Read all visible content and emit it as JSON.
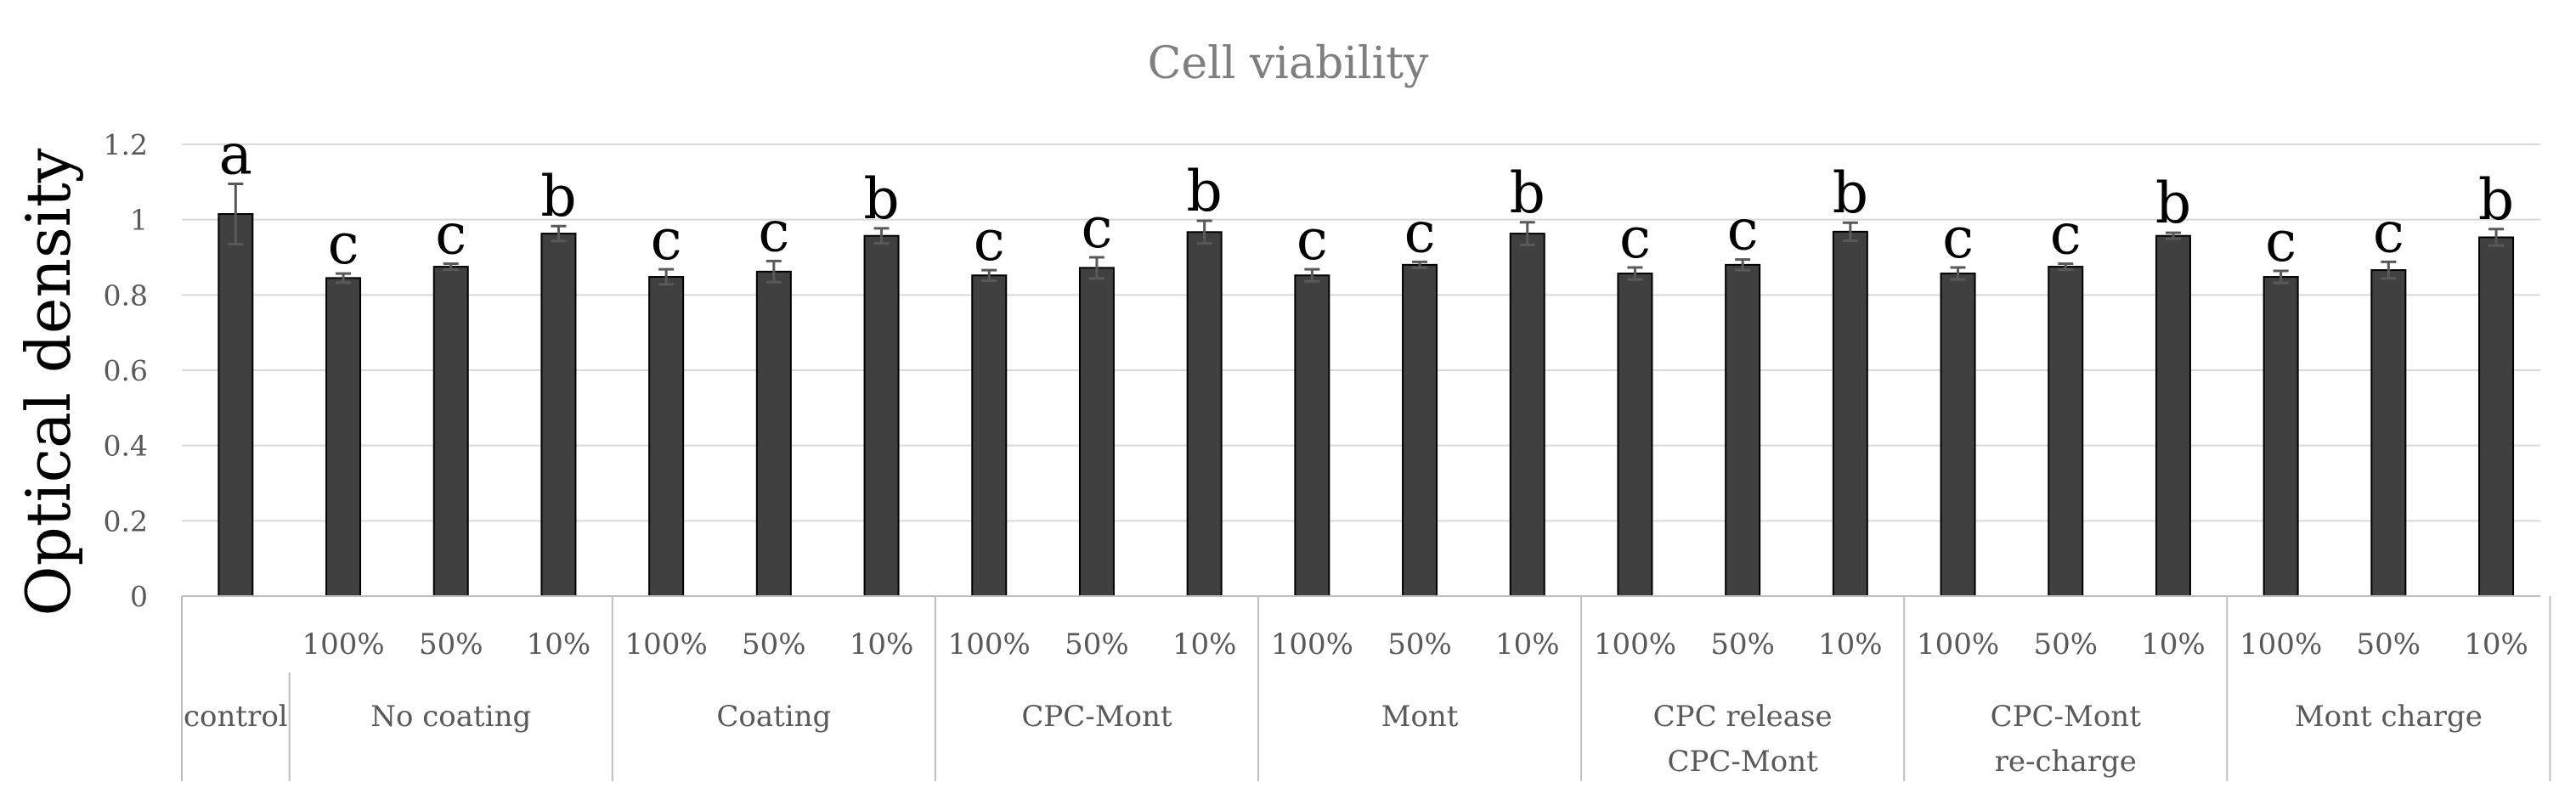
{
  "chart_data": {
    "type": "bar",
    "title": "Cell viability",
    "ylabel": "Optical density",
    "xlabel": "",
    "ylim": [
      0,
      1.2
    ],
    "yticks": [
      0,
      0.2,
      0.4,
      0.6,
      0.8,
      1,
      1.2
    ],
    "ytick_labels": [
      "0",
      "0.2",
      "0.4",
      "0.6",
      "0.8",
      "1",
      "1.2"
    ],
    "grid": true,
    "legend": "none",
    "groups": [
      {
        "label": [
          "control"
        ],
        "bars": [
          {
            "sub": "",
            "value": 1.015,
            "error": 0.08,
            "sig": "a"
          }
        ]
      },
      {
        "label": [
          "No coating"
        ],
        "bars": [
          {
            "sub": "100%",
            "value": 0.845,
            "error": 0.012,
            "sig": "c"
          },
          {
            "sub": "50%",
            "value": 0.875,
            "error": 0.008,
            "sig": "c"
          },
          {
            "sub": "10%",
            "value": 0.963,
            "error": 0.02,
            "sig": "b"
          }
        ]
      },
      {
        "label": [
          "Coating"
        ],
        "bars": [
          {
            "sub": "100%",
            "value": 0.848,
            "error": 0.02,
            "sig": "c"
          },
          {
            "sub": "50%",
            "value": 0.862,
            "error": 0.028,
            "sig": "c"
          },
          {
            "sub": "10%",
            "value": 0.957,
            "error": 0.02,
            "sig": "b"
          }
        ]
      },
      {
        "label": [
          "CPC-Mont"
        ],
        "bars": [
          {
            "sub": "100%",
            "value": 0.852,
            "error": 0.014,
            "sig": "c"
          },
          {
            "sub": "50%",
            "value": 0.872,
            "error": 0.028,
            "sig": "c"
          },
          {
            "sub": "10%",
            "value": 0.967,
            "error": 0.03,
            "sig": "b"
          }
        ]
      },
      {
        "label": [
          "Mont"
        ],
        "bars": [
          {
            "sub": "100%",
            "value": 0.852,
            "error": 0.016,
            "sig": "c"
          },
          {
            "sub": "50%",
            "value": 0.88,
            "error": 0.008,
            "sig": "c"
          },
          {
            "sub": "10%",
            "value": 0.963,
            "error": 0.03,
            "sig": "b"
          }
        ]
      },
      {
        "label": [
          "CPC release",
          "CPC-Mont"
        ],
        "bars": [
          {
            "sub": "100%",
            "value": 0.857,
            "error": 0.016,
            "sig": "c"
          },
          {
            "sub": "50%",
            "value": 0.88,
            "error": 0.014,
            "sig": "c"
          },
          {
            "sub": "10%",
            "value": 0.968,
            "error": 0.024,
            "sig": "b"
          }
        ]
      },
      {
        "label": [
          "CPC-Mont",
          "re-charge"
        ],
        "bars": [
          {
            "sub": "100%",
            "value": 0.857,
            "error": 0.016,
            "sig": "c"
          },
          {
            "sub": "50%",
            "value": 0.875,
            "error": 0.008,
            "sig": "c"
          },
          {
            "sub": "10%",
            "value": 0.957,
            "error": 0.008,
            "sig": "b"
          }
        ]
      },
      {
        "label": [
          "Mont charge"
        ],
        "bars": [
          {
            "sub": "100%",
            "value": 0.848,
            "error": 0.016,
            "sig": "c"
          },
          {
            "sub": "50%",
            "value": 0.866,
            "error": 0.022,
            "sig": "c"
          },
          {
            "sub": "10%",
            "value": 0.953,
            "error": 0.022,
            "sig": "b"
          }
        ]
      }
    ]
  }
}
